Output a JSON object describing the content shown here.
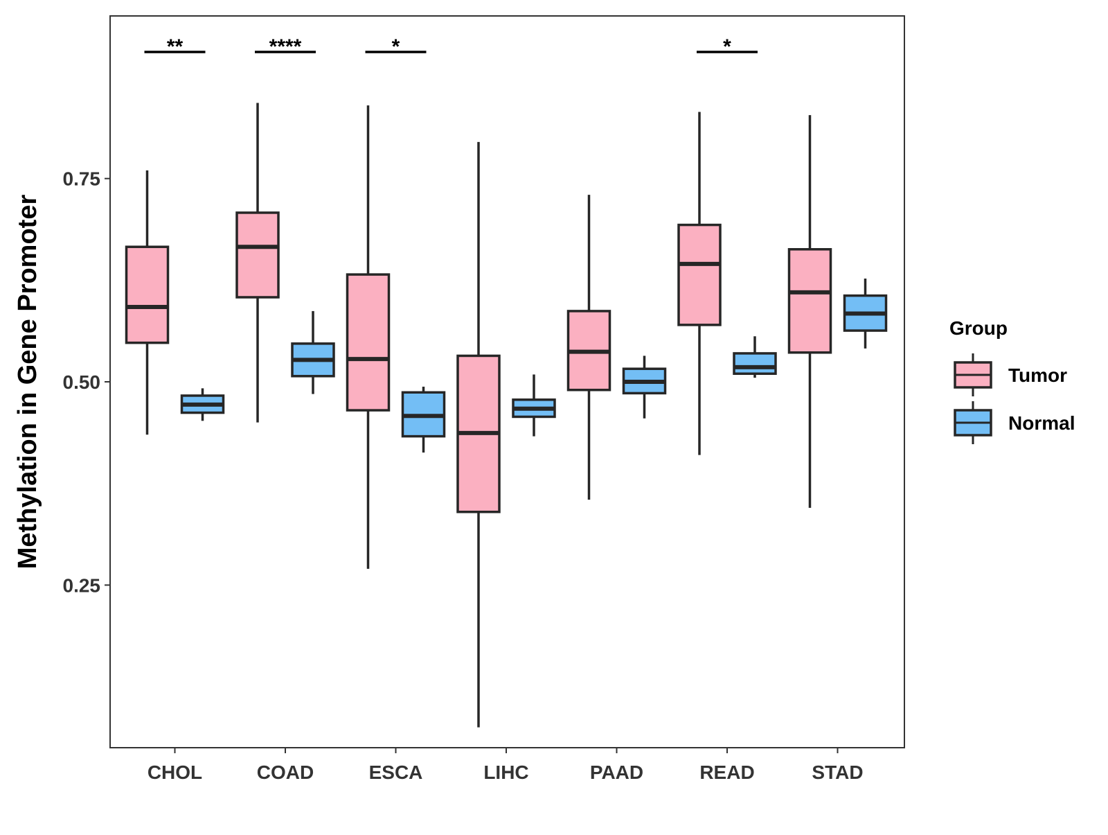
{
  "chart_data": {
    "type": "boxplot",
    "title": "",
    "xlabel": "",
    "ylabel": "Methylation in Gene Promoter",
    "ylim": [
      0.05,
      0.95
    ],
    "yticks": [
      0.25,
      0.5,
      0.75
    ],
    "ytick_labels": [
      "0.25",
      "0.50",
      "0.75"
    ],
    "categories": [
      "CHOL",
      "COAD",
      "ESCA",
      "LIHC",
      "PAAD",
      "READ",
      "STAD"
    ],
    "legend": {
      "title": "Group",
      "position": "right",
      "items": [
        {
          "name": "Tumor",
          "color": "#FBB0C1"
        },
        {
          "name": "Normal",
          "color": "#73BEF5"
        }
      ]
    },
    "series": [
      {
        "name": "Tumor",
        "color": "#FBB0C1",
        "boxes": [
          {
            "min": 0.435,
            "q1": 0.548,
            "median": 0.592,
            "q3": 0.666,
            "max": 0.76
          },
          {
            "min": 0.45,
            "q1": 0.604,
            "median": 0.666,
            "q3": 0.708,
            "max": 0.843
          },
          {
            "min": 0.27,
            "q1": 0.465,
            "median": 0.528,
            "q3": 0.632,
            "max": 0.84
          },
          {
            "min": 0.075,
            "q1": 0.34,
            "median": 0.437,
            "q3": 0.532,
            "max": 0.795
          },
          {
            "min": 0.355,
            "q1": 0.49,
            "median": 0.537,
            "q3": 0.587,
            "max": 0.73
          },
          {
            "min": 0.41,
            "q1": 0.57,
            "median": 0.645,
            "q3": 0.693,
            "max": 0.832
          },
          {
            "min": 0.345,
            "q1": 0.536,
            "median": 0.61,
            "q3": 0.663,
            "max": 0.828
          }
        ]
      },
      {
        "name": "Normal",
        "color": "#73BEF5",
        "boxes": [
          {
            "min": 0.452,
            "q1": 0.462,
            "median": 0.472,
            "q3": 0.483,
            "max": 0.492
          },
          {
            "min": 0.485,
            "q1": 0.507,
            "median": 0.527,
            "q3": 0.547,
            "max": 0.587
          },
          {
            "min": 0.413,
            "q1": 0.433,
            "median": 0.458,
            "q3": 0.487,
            "max": 0.494
          },
          {
            "min": 0.433,
            "q1": 0.457,
            "median": 0.467,
            "q3": 0.478,
            "max": 0.509
          },
          {
            "min": 0.455,
            "q1": 0.486,
            "median": 0.5,
            "q3": 0.516,
            "max": 0.532
          },
          {
            "min": 0.505,
            "q1": 0.51,
            "median": 0.518,
            "q3": 0.535,
            "max": 0.556
          },
          {
            "min": 0.541,
            "q1": 0.563,
            "median": 0.584,
            "q3": 0.606,
            "max": 0.627
          }
        ]
      }
    ],
    "annotations": [
      {
        "category": "CHOL",
        "label": "**"
      },
      {
        "category": "COAD",
        "label": "****"
      },
      {
        "category": "ESCA",
        "label": "*"
      },
      {
        "category": "READ",
        "label": "*"
      }
    ]
  }
}
